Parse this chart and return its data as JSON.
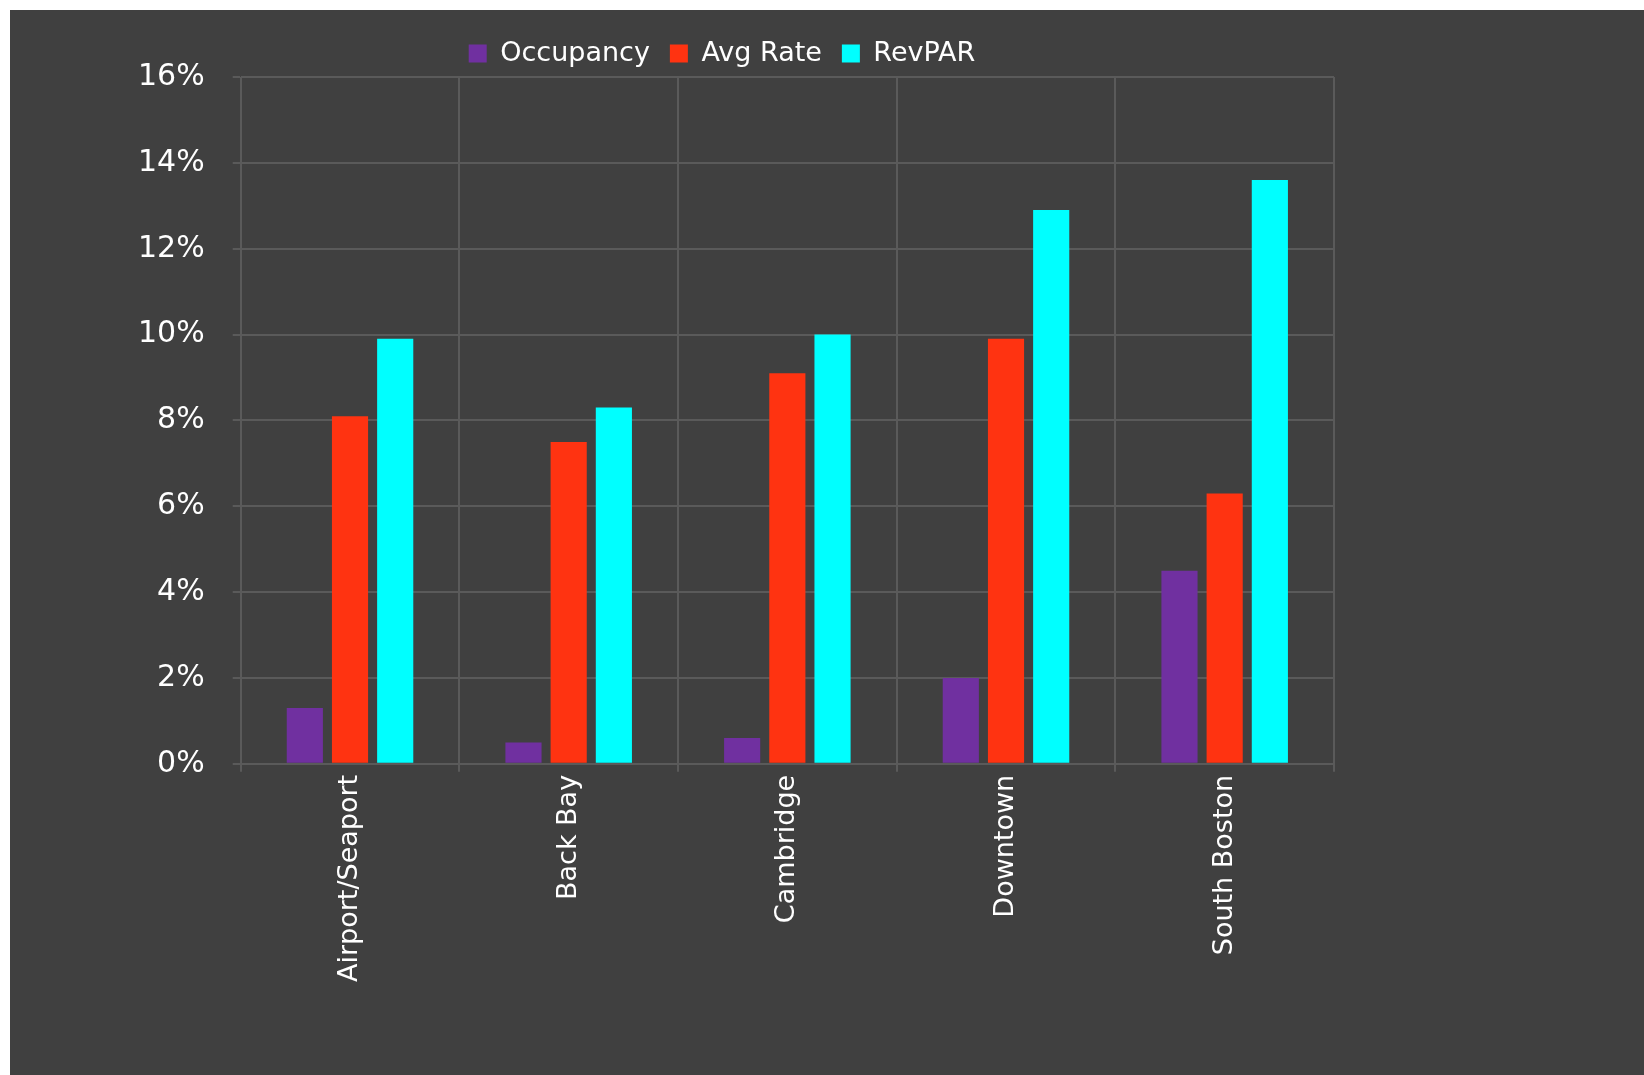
{
  "chart_data": {
    "type": "bar",
    "categories": [
      "Airport/Seaport",
      "Back Bay",
      "Cambridge",
      "Downtown",
      "South Boston"
    ],
    "series": [
      {
        "name": "Occupancy",
        "color": "#7030a0",
        "values": [
          1.3,
          0.5,
          0.6,
          2.0,
          4.5
        ]
      },
      {
        "name": "Avg Rate",
        "color": "#ff3311",
        "values": [
          8.1,
          7.5,
          9.1,
          9.9,
          6.3
        ]
      },
      {
        "name": "RevPAR",
        "color": "#00ffff",
        "values": [
          9.9,
          8.3,
          10.0,
          12.9,
          13.6
        ]
      }
    ],
    "ylim": [
      0,
      16
    ],
    "yticks": [
      {
        "value": 0,
        "label": "0%"
      },
      {
        "value": 2,
        "label": "2%"
      },
      {
        "value": 4,
        "label": "4%"
      },
      {
        "value": 6,
        "label": "6%"
      },
      {
        "value": 8,
        "label": "8%"
      },
      {
        "value": 10,
        "label": "10%"
      },
      {
        "value": 12,
        "label": "12%"
      },
      {
        "value": 14,
        "label": "14%"
      },
      {
        "value": 16,
        "label": "16%"
      }
    ],
    "grid": true,
    "legend": "top"
  }
}
